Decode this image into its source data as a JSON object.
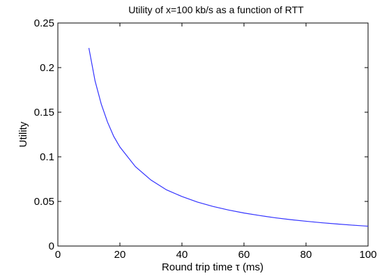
{
  "chart_data": {
    "type": "line",
    "title": "Utility of x=100 kb/s as a function of RTT",
    "xlabel": "Round trip time τ (ms)",
    "ylabel": "Utility",
    "xlim": [
      0,
      100
    ],
    "ylim": [
      0,
      0.25
    ],
    "xticks": [
      0,
      20,
      40,
      60,
      80,
      100
    ],
    "xtick_labels": [
      "0",
      "20",
      "40",
      "60",
      "80",
      "100"
    ],
    "yticks": [
      0,
      0.05,
      0.1,
      0.15,
      0.2,
      0.25
    ],
    "ytick_labels": [
      "0",
      "0.05",
      "0.1",
      "0.15",
      "0.2",
      "0.25"
    ],
    "grid": false,
    "series": [
      {
        "color": "#3333ff",
        "x": [
          10,
          12,
          14,
          16,
          18,
          20,
          25,
          30,
          35,
          40,
          45,
          50,
          55,
          60,
          65,
          70,
          75,
          80,
          85,
          90,
          95,
          100
        ],
        "y": [
          0.222,
          0.185,
          0.159,
          0.139,
          0.123,
          0.111,
          0.089,
          0.074,
          0.063,
          0.0555,
          0.0493,
          0.0444,
          0.0404,
          0.037,
          0.0342,
          0.0317,
          0.0296,
          0.0278,
          0.0261,
          0.0247,
          0.0234,
          0.0222
        ]
      }
    ]
  }
}
